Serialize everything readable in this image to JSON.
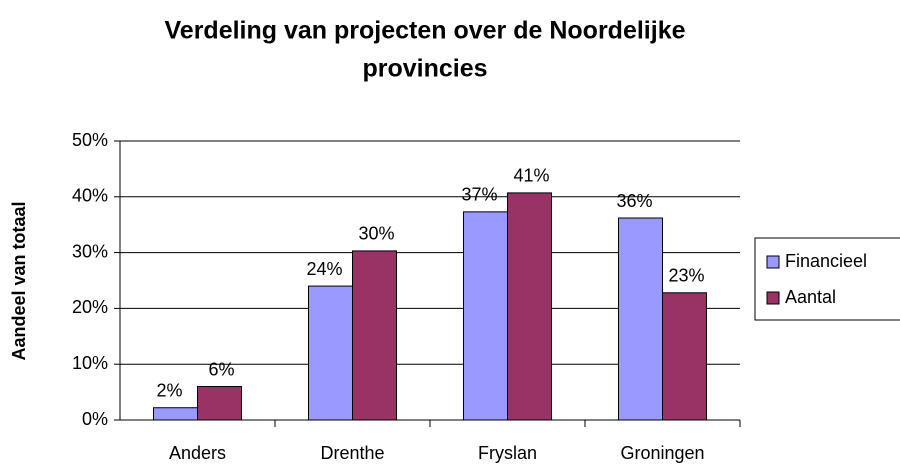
{
  "chart_data": {
    "type": "bar",
    "title": [
      "Verdeling van projecten over de Noordelijke",
      "provincies"
    ],
    "y_label": "Aandeel van totaal",
    "categories": [
      "Anders",
      "Drenthe",
      "Fryslan",
      "Groningen"
    ],
    "series": [
      {
        "name": "Financieel",
        "color": "#9999ff",
        "values": [
          2.2,
          24,
          37.3,
          36.2
        ],
        "value_labels": [
          "2%",
          "24%",
          "37%",
          "36%"
        ]
      },
      {
        "name": "Aantal",
        "color": "#993366",
        "values": [
          6,
          30.3,
          40.7,
          22.8
        ],
        "value_labels": [
          "6%",
          "30%",
          "41%",
          "23%"
        ]
      }
    ],
    "ylim": [
      0,
      50
    ],
    "yticks": [
      {
        "value": 0,
        "label": "0%"
      },
      {
        "value": 10,
        "label": "10%"
      },
      {
        "value": 20,
        "label": "20%"
      },
      {
        "value": 30,
        "label": "30%"
      },
      {
        "value": 40,
        "label": "40%"
      },
      {
        "value": 50,
        "label": "50%"
      }
    ],
    "grid": true,
    "legend": "right"
  }
}
